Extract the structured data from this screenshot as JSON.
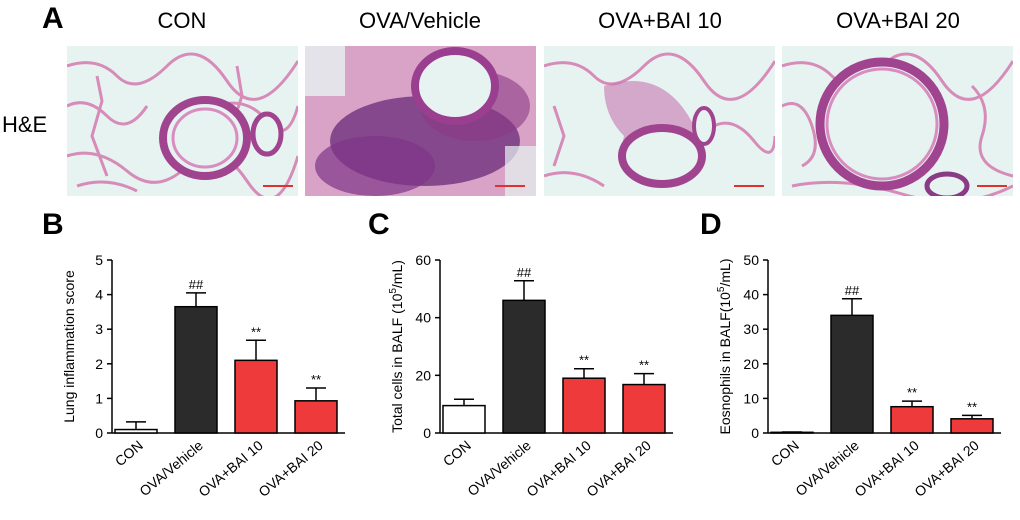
{
  "figure": {
    "panel_letters": [
      "A",
      "B",
      "C",
      "D"
    ],
    "he_row_label": "H&E",
    "he_titles": [
      "CON",
      "OVA/Vehicle",
      "OVA+BAI 10",
      "OVA+BAI 20"
    ]
  },
  "colors": {
    "con": "#ffffff",
    "vehicle": "#2b2b2b",
    "bai": "#ee3a3a",
    "tissue_pink": "#e7a1c6",
    "tissue_purple": "#8a3b86",
    "background_cyan": "#e6f3f1",
    "scale_bar": "#e03030"
  },
  "chart_data": [
    {
      "type": "bar",
      "panel": "B",
      "categories": [
        "CON",
        "OVA/Vehicle",
        "OVA+BAI 10",
        "OVA+BAI 20"
      ],
      "values": [
        0.1,
        3.65,
        2.1,
        0.93
      ],
      "errors": [
        0.22,
        0.4,
        0.58,
        0.37
      ],
      "annotations": [
        "",
        "##",
        "**",
        "**"
      ],
      "ylabel": "Lung inflammation score",
      "ylabel_sup": "",
      "ylabel_tail": "",
      "ylim": [
        0,
        5
      ],
      "yticks": [
        0,
        1,
        2,
        3,
        4,
        5
      ]
    },
    {
      "type": "bar",
      "panel": "C",
      "categories": [
        "CON",
        "OVA/Vehicle",
        "OVA+BAI 10",
        "OVA+BAI 20"
      ],
      "values": [
        9.5,
        46,
        19,
        16.8
      ],
      "errors": [
        2.2,
        6.8,
        3.3,
        3.8
      ],
      "annotations": [
        "",
        "##",
        "**",
        "**"
      ],
      "ylabel": "Total cells in BALF (10",
      "ylabel_sup": "5",
      "ylabel_tail": "/mL)",
      "ylim": [
        0,
        60
      ],
      "yticks": [
        0,
        20,
        40,
        60
      ]
    },
    {
      "type": "bar",
      "panel": "D",
      "categories": [
        "CON",
        "OVA/Vehicle",
        "OVA+BAI 10",
        "OVA+BAI 20"
      ],
      "values": [
        0.2,
        34,
        7.6,
        4.1
      ],
      "errors": [
        0.1,
        4.8,
        1.6,
        1.0
      ],
      "annotations": [
        "",
        "##",
        "**",
        "**"
      ],
      "ylabel": "Eosnophils in BALF(10",
      "ylabel_sup": "5",
      "ylabel_tail": "/mL)",
      "ylim": [
        0,
        50
      ],
      "yticks": [
        0,
        10,
        20,
        30,
        40,
        50
      ]
    }
  ]
}
